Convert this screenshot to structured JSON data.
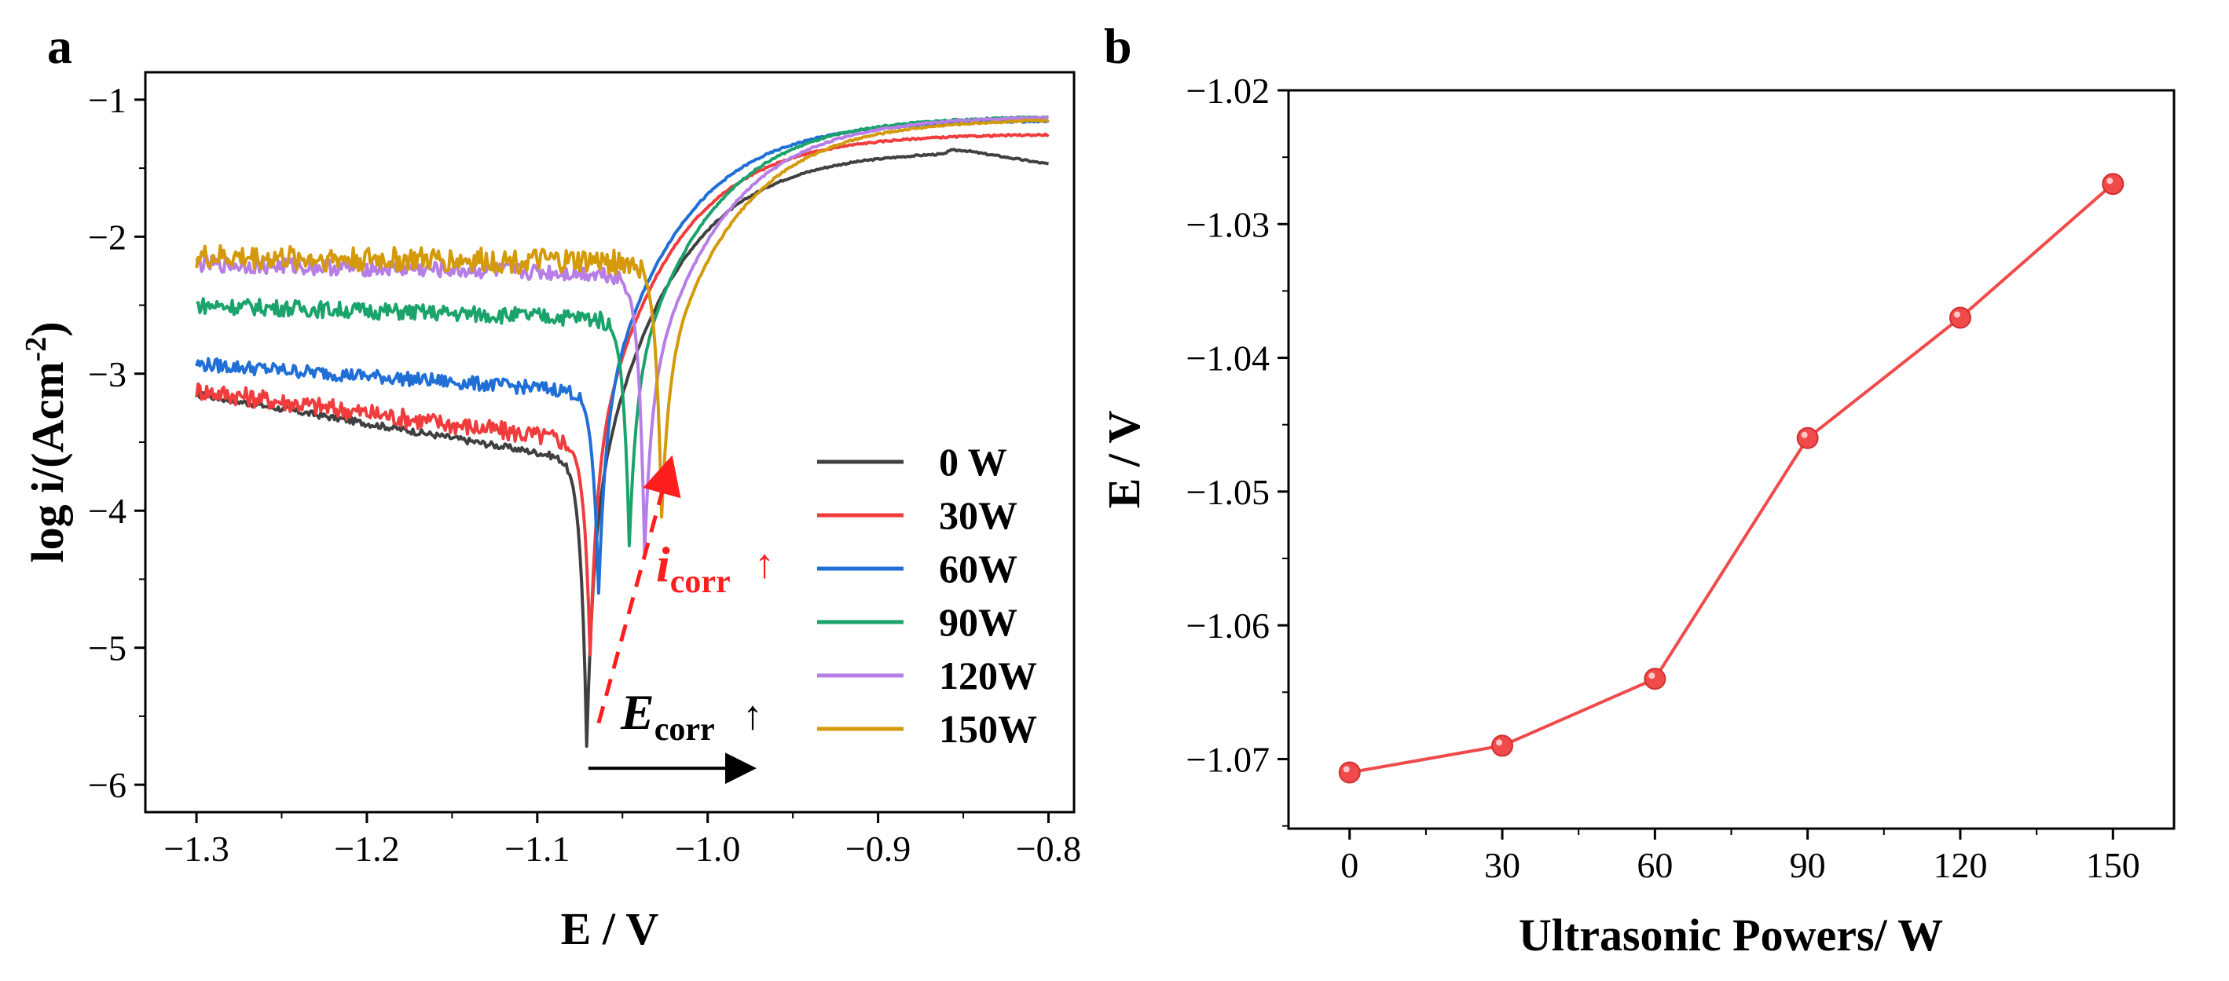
{
  "panel_labels": {
    "a": "a",
    "b": "b"
  },
  "colors": {
    "0 W": "#404040",
    "30W": "#f03c3c",
    "60W": "#1f6fd6",
    "90W": "#1aa36b",
    "120W": "#b67ee6",
    "150W": "#d49a0c",
    "annotation": "#ff1e1e",
    "panel_b_line": "#f04a4a"
  },
  "chart_data": [
    {
      "id": "a",
      "type": "line",
      "title": "",
      "xlabel": "E / V",
      "ylabel_main": "log i/(Acm",
      "ylabel_sup": "-2",
      "ylabel_end": ")",
      "xlim": [
        -1.33,
        -0.785
      ],
      "ylim": [
        -6.2,
        -0.8
      ],
      "xticks": [
        -1.3,
        -1.2,
        -1.1,
        -1.0,
        -0.9,
        -0.8
      ],
      "xtick_labels": [
        "−1.3",
        "−1.2",
        "−1.1",
        "−1.0",
        "−0.9",
        "−0.8"
      ],
      "yticks": [
        -6,
        -5,
        -4,
        -3,
        -2,
        -1
      ],
      "ytick_labels": [
        "−6",
        "−5",
        "−4",
        "−3",
        "−2",
        "−1"
      ],
      "legend_position": "bottom-right",
      "series": [
        {
          "name": "0 W",
          "ecorr": -1.071,
          "cathodic_start": -3.15,
          "cathodic_slope": 1.9,
          "dip_min": -5.72,
          "plateau": -1.37,
          "noise": 0.012,
          "x": [
            -1.3,
            -1.2,
            -1.1,
            -1.075,
            -1.071,
            -1.06,
            -1.0,
            -0.9,
            -0.85,
            -0.82,
            -0.8
          ],
          "y": [
            -3.15,
            -3.3,
            -3.55,
            -3.9,
            -5.72,
            -3.1,
            -2.3,
            -1.6,
            -1.38,
            -1.45,
            -1.5
          ]
        },
        {
          "name": "30W",
          "ecorr": -1.069,
          "cathodic_start": -3.12,
          "cathodic_slope": 1.5,
          "dip_min": -5.05,
          "plateau": -1.25,
          "noise": 0.035,
          "x": [
            -1.3,
            -1.2,
            -1.1,
            -1.075,
            -1.069,
            -1.06,
            -1.0,
            -0.9,
            -0.8
          ],
          "y": [
            -3.12,
            -3.2,
            -3.35,
            -3.6,
            -5.05,
            -3.0,
            -2.15,
            -1.5,
            -1.15
          ]
        },
        {
          "name": "60W",
          "ecorr": -1.064,
          "cathodic_start": -2.93,
          "cathodic_slope": 0.8,
          "dip_min": -4.6,
          "plateau": -1.15,
          "noise": 0.025,
          "x": [
            -1.3,
            -1.2,
            -1.1,
            -1.075,
            -1.064,
            -1.055,
            -1.0,
            -0.9,
            -0.8
          ],
          "y": [
            -2.93,
            -3.0,
            -3.05,
            -3.2,
            -4.6,
            -2.9,
            -2.1,
            -1.45,
            -1.13
          ]
        },
        {
          "name": "90W",
          "ecorr": -1.046,
          "cathodic_start": -2.5,
          "cathodic_slope": 0.4,
          "dip_min": -4.25,
          "plateau": -1.12,
          "noise": 0.03,
          "x": [
            -1.3,
            -1.2,
            -1.1,
            -1.06,
            -1.046,
            -1.035,
            -1.0,
            -0.9,
            -0.8
          ],
          "y": [
            -2.5,
            -2.55,
            -2.55,
            -2.7,
            -4.25,
            -2.65,
            -2.05,
            -1.42,
            -1.11
          ]
        },
        {
          "name": "120W",
          "ecorr": -1.037,
          "cathodic_start": -2.2,
          "cathodic_slope": 0.3,
          "dip_min": -4.3,
          "plateau": -1.12,
          "noise": 0.03,
          "x": [
            -1.3,
            -1.2,
            -1.1,
            -1.05,
            -1.037,
            -1.03,
            -1.0,
            -0.9,
            -0.8
          ],
          "y": [
            -2.2,
            -2.25,
            -2.25,
            -2.35,
            -4.3,
            -2.6,
            -2.0,
            -1.45,
            -1.1
          ]
        },
        {
          "name": "150W",
          "ecorr": -1.027,
          "cathodic_start": -2.15,
          "cathodic_slope": 0.15,
          "dip_min": -4.05,
          "plateau": -1.14,
          "noise": 0.045,
          "x": [
            -1.3,
            -1.2,
            -1.1,
            -1.04,
            -1.027,
            -1.02,
            -1.0,
            -0.9,
            -0.8
          ],
          "y": [
            -2.15,
            -2.2,
            -2.2,
            -2.3,
            -4.05,
            -2.55,
            -2.0,
            -1.5,
            -1.13
          ]
        }
      ],
      "annotations": {
        "icorr_main": "i",
        "icorr_sub": "corr",
        "ecorr_main": "E",
        "ecorr_sub": "corr",
        "up_arrow": "↑",
        "dashed_arrow": {
          "from": [
            -1.064,
            -5.55
          ],
          "to": [
            -1.022,
            -3.65
          ]
        },
        "black_arrow": {
          "from": [
            -1.07,
            -5.88
          ],
          "to": [
            -0.975,
            -5.88
          ]
        }
      }
    },
    {
      "id": "b",
      "type": "line",
      "title": "",
      "xlabel": "Ultrasonic Powers/ W",
      "ylabel": "E / V",
      "xlim": [
        -12,
        162
      ],
      "ylim": [
        -1.0752,
        -1.02
      ],
      "xticks": [
        0,
        30,
        60,
        90,
        120,
        150
      ],
      "xtick_labels": [
        "0",
        "30",
        "60",
        "90",
        "120",
        "150"
      ],
      "yticks": [
        -1.07,
        -1.06,
        -1.05,
        -1.04,
        -1.03,
        -1.02
      ],
      "ytick_labels": [
        "−1.07",
        "−1.06",
        "−1.05",
        "−1.04",
        "−1.03",
        "−1.02"
      ],
      "series": [
        {
          "name": "Ecorr",
          "x": [
            0,
            30,
            60,
            90,
            120,
            150
          ],
          "y": [
            -1.071,
            -1.069,
            -1.064,
            -1.046,
            -1.037,
            -1.027
          ]
        }
      ]
    }
  ]
}
